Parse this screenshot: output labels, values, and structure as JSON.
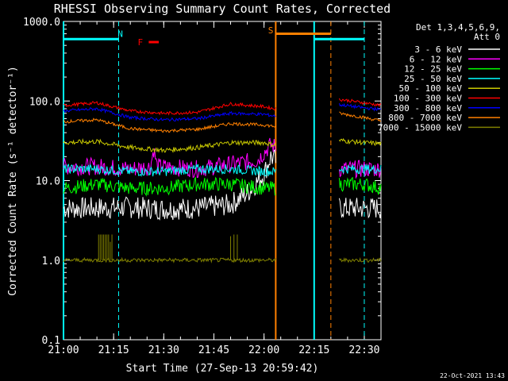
{
  "footer_date": "22-Oct-2021 13:43",
  "chart_data": {
    "type": "line",
    "title": "RHESSI Observing Summary Count Rates, Corrected",
    "xlabel": "Start Time (27-Sep-13 20:59:42)",
    "ylabel": "Corrected Count Rate (s⁻¹ detector⁻¹)",
    "yscale": "log",
    "ylim": [
      0.1,
      1000
    ],
    "xlim_minutes": [
      0,
      95
    ],
    "x_ticks": [
      {
        "label": "21:00",
        "min": 0
      },
      {
        "label": "21:15",
        "min": 15
      },
      {
        "label": "21:30",
        "min": 30
      },
      {
        "label": "21:45",
        "min": 45
      },
      {
        "label": "22:00",
        "min": 60
      },
      {
        "label": "22:15",
        "min": 75
      },
      {
        "label": "22:30",
        "min": 90
      }
    ],
    "y_ticks": [
      {
        "label": "0.1",
        "v": 0.1
      },
      {
        "label": "1.0",
        "v": 1
      },
      {
        "label": "10.0",
        "v": 10
      },
      {
        "label": "100.0",
        "v": 100
      },
      {
        "label": "1000.0",
        "v": 1000
      }
    ],
    "legend": {
      "header1": "Det 1,3,4,5,6,9,",
      "header2": "Att 0",
      "placement": "outside-right"
    },
    "data_gap_minutes": [
      63.5,
      82.5
    ],
    "series": [
      {
        "name": "3 - 6 keV",
        "color": "#ffffff",
        "points": [
          [
            0,
            4.5
          ],
          [
            10,
            4.5
          ],
          [
            20,
            4.6
          ],
          [
            30,
            4.4
          ],
          [
            40,
            4.5
          ],
          [
            50,
            5.0
          ],
          [
            55,
            7
          ],
          [
            60,
            12
          ],
          [
            62,
            20
          ],
          [
            82.5,
            4.5
          ],
          [
            90,
            4.5
          ],
          [
            95,
            4.5
          ]
        ]
      },
      {
        "name": "6 - 12 keV",
        "color": "#ff00ff",
        "points": [
          [
            0,
            15
          ],
          [
            10,
            15
          ],
          [
            20,
            14
          ],
          [
            26,
            15
          ],
          [
            27,
            25
          ],
          [
            28,
            15
          ],
          [
            40,
            14
          ],
          [
            50,
            16
          ],
          [
            58,
            18
          ],
          [
            62,
            28
          ],
          [
            82.5,
            14
          ],
          [
            90,
            14
          ],
          [
            95,
            14
          ]
        ]
      },
      {
        "name": "12 - 25 keV",
        "color": "#00ff00",
        "points": [
          [
            0,
            8
          ],
          [
            10,
            9
          ],
          [
            20,
            8
          ],
          [
            30,
            8
          ],
          [
            40,
            9
          ],
          [
            50,
            9
          ],
          [
            60,
            8
          ],
          [
            63,
            8
          ],
          [
            82.5,
            9
          ],
          [
            90,
            9
          ],
          [
            95,
            8
          ]
        ]
      },
      {
        "name": "25 - 50 keV",
        "color": "#00ffff",
        "points": [
          [
            0,
            14
          ],
          [
            10,
            14
          ],
          [
            20,
            13
          ],
          [
            30,
            13
          ],
          [
            40,
            14
          ],
          [
            50,
            14
          ],
          [
            60,
            13
          ],
          [
            63,
            13
          ],
          [
            82.5,
            14
          ],
          [
            90,
            14
          ],
          [
            95,
            14
          ]
        ]
      },
      {
        "name": "50 - 100 keV",
        "color": "#c8c800",
        "points": [
          [
            0,
            30
          ],
          [
            10,
            31
          ],
          [
            20,
            26
          ],
          [
            30,
            24
          ],
          [
            40,
            26
          ],
          [
            50,
            30
          ],
          [
            60,
            30
          ],
          [
            63,
            28
          ],
          [
            82.5,
            32
          ],
          [
            90,
            30
          ],
          [
            95,
            29
          ]
        ]
      },
      {
        "name": "100 - 300 keV",
        "color": "#ff0000",
        "points": [
          [
            0,
            88
          ],
          [
            10,
            95
          ],
          [
            20,
            75
          ],
          [
            30,
            70
          ],
          [
            40,
            72
          ],
          [
            50,
            92
          ],
          [
            60,
            85
          ],
          [
            63,
            80
          ],
          [
            82.5,
            105
          ],
          [
            90,
            95
          ],
          [
            95,
            88
          ]
        ]
      },
      {
        "name": "300 - 800 keV",
        "color": "#0000ff",
        "points": [
          [
            0,
            75
          ],
          [
            10,
            80
          ],
          [
            20,
            62
          ],
          [
            30,
            58
          ],
          [
            40,
            60
          ],
          [
            50,
            70
          ],
          [
            60,
            68
          ],
          [
            63,
            65
          ],
          [
            82.5,
            90
          ],
          [
            90,
            82
          ],
          [
            95,
            78
          ]
        ]
      },
      {
        "name": "800 - 7000 keV",
        "color": "#ff8000",
        "points": [
          [
            0,
            55
          ],
          [
            10,
            58
          ],
          [
            20,
            45
          ],
          [
            30,
            42
          ],
          [
            40,
            44
          ],
          [
            50,
            52
          ],
          [
            60,
            50
          ],
          [
            63,
            48
          ],
          [
            82.5,
            70
          ],
          [
            90,
            62
          ],
          [
            95,
            56
          ]
        ]
      },
      {
        "name": "7000 - 15000 keV",
        "color": "#808000",
        "points": [
          [
            0,
            1
          ],
          [
            63.5,
            1
          ],
          [
            82.5,
            1
          ],
          [
            95,
            1
          ]
        ]
      }
    ],
    "annotations": [
      {
        "text": "N",
        "color": "#00ffff",
        "min": 17,
        "v": 700
      },
      {
        "text": "F",
        "color": "#ff0000",
        "min": 23,
        "v": 550
      },
      {
        "text": "S",
        "color": "#ff8000",
        "min": 62,
        "v": 780
      }
    ],
    "flags": [
      {
        "label": "night",
        "color": "#00ffff",
        "solid_min": [
          0,
          75
        ],
        "dashed_min": [
          16.5,
          90
        ],
        "bar_ranges": [
          [
            0,
            16.5
          ],
          [
            75,
            90
          ]
        ]
      },
      {
        "label": "saa",
        "color": "#ff8000",
        "solid_min": [
          63.5
        ],
        "dashed_min": [
          80
        ],
        "bar_ranges": [
          [
            63.5,
            80
          ]
        ]
      }
    ]
  }
}
